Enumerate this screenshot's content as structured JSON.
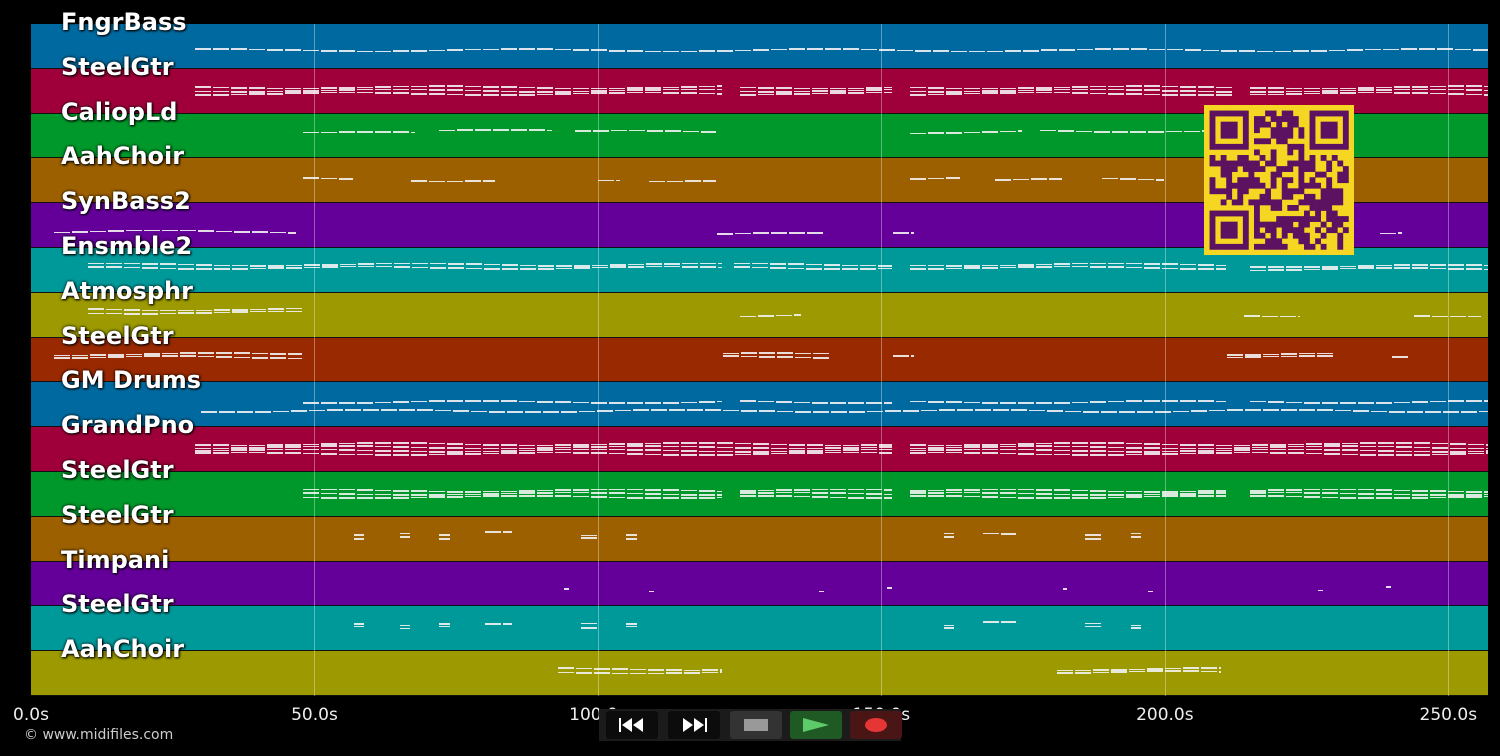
{
  "tracks": [
    {
      "name": "FngrBass",
      "color": "#006aa0",
      "notes": [
        [
          29,
          258,
          1,
          0.6
        ]
      ]
    },
    {
      "name": "SteelGtr",
      "color": "#a0003a",
      "notes": [
        [
          29,
          122,
          3,
          0.5
        ],
        [
          125,
          152,
          3,
          0.5
        ],
        [
          155,
          212,
          3,
          0.5
        ],
        [
          215,
          258,
          3,
          0.5
        ]
      ]
    },
    {
      "name": "CaliopLd",
      "color": "#00982a",
      "notes": [
        [
          48,
          68,
          1,
          0.45
        ],
        [
          72,
          92,
          1,
          0.4
        ],
        [
          96,
          121,
          1,
          0.42
        ],
        [
          155,
          175,
          1,
          0.43
        ],
        [
          178,
          208,
          1,
          0.4
        ],
        [
          215,
          233,
          1,
          0.45
        ]
      ]
    },
    {
      "name": "AahChoir",
      "color": "#9d6000",
      "notes": [
        [
          48,
          57,
          1,
          0.48
        ],
        [
          67,
          82,
          1,
          0.5
        ],
        [
          100,
          104,
          1,
          0.48
        ],
        [
          109,
          121,
          1,
          0.5
        ],
        [
          155,
          164,
          1,
          0.48
        ],
        [
          170,
          182,
          1,
          0.5
        ],
        [
          189,
          200,
          1,
          0.48
        ]
      ]
    },
    {
      "name": "SynBass2",
      "color": "#640099",
      "notes": [
        [
          4,
          47,
          1,
          0.65
        ],
        [
          121,
          140,
          1,
          0.7
        ],
        [
          152,
          156,
          1,
          0.7
        ],
        [
          238,
          242,
          1,
          0.7
        ]
      ]
    },
    {
      "name": "Ensmble2",
      "color": "#00999a",
      "notes": [
        [
          10,
          122,
          2,
          0.42
        ],
        [
          124,
          152,
          2,
          0.42
        ],
        [
          155,
          211,
          2,
          0.42
        ],
        [
          215,
          258,
          2,
          0.45
        ]
      ]
    },
    {
      "name": "Atmosphr",
      "color": "#9c9a00",
      "notes": [
        [
          10,
          48,
          2,
          0.42
        ],
        [
          125,
          136,
          1,
          0.52
        ],
        [
          214,
          224,
          1,
          0.52
        ],
        [
          244,
          256,
          1,
          0.52
        ]
      ]
    },
    {
      "name": "SteelGtr",
      "color": "#992900",
      "notes": [
        [
          4,
          48,
          2,
          0.42
        ],
        [
          122,
          141,
          2,
          0.42
        ],
        [
          152,
          156,
          1,
          0.45
        ],
        [
          211,
          230,
          2,
          0.42
        ],
        [
          240,
          243,
          1,
          0.45
        ]
      ]
    },
    {
      "name": "GM Drums",
      "color": "#006aa0",
      "notes": [
        [
          48,
          122,
          1,
          0.45
        ],
        [
          125,
          152,
          1,
          0.45
        ],
        [
          155,
          211,
          1,
          0.45
        ],
        [
          215,
          258,
          1,
          0.45
        ],
        [
          30,
          258,
          1,
          0.65
        ]
      ]
    },
    {
      "name": "GrandPno",
      "color": "#a0003a",
      "notes": [
        [
          29,
          152,
          4,
          0.5
        ],
        [
          155,
          258,
          4,
          0.5
        ]
      ]
    },
    {
      "name": "SteelGtr",
      "color": "#00982a",
      "notes": [
        [
          48,
          122,
          3,
          0.5
        ],
        [
          125,
          152,
          3,
          0.5
        ],
        [
          155,
          211,
          3,
          0.5
        ],
        [
          215,
          258,
          3,
          0.5
        ]
      ]
    },
    {
      "name": "SteelGtr",
      "color": "#9d6000",
      "notes": [
        [
          57,
          59,
          2,
          0.45
        ],
        [
          65,
          67,
          2,
          0.45
        ],
        [
          72,
          74,
          2,
          0.45
        ],
        [
          80,
          85,
          1,
          0.38
        ],
        [
          97,
          100,
          2,
          0.45
        ],
        [
          105,
          107,
          2,
          0.45
        ],
        [
          161,
          163,
          2,
          0.45
        ],
        [
          168,
          174,
          1,
          0.38
        ],
        [
          186,
          189,
          2,
          0.45
        ],
        [
          194,
          196,
          2,
          0.45
        ]
      ]
    },
    {
      "name": "Timpani",
      "color": "#640099",
      "notes": [
        [
          94,
          95,
          1,
          0.65
        ],
        [
          109,
          110,
          1,
          0.7
        ],
        [
          139,
          140,
          1,
          0.7
        ],
        [
          151,
          152,
          1,
          0.62
        ],
        [
          182,
          183,
          1,
          0.62
        ],
        [
          197,
          198,
          1,
          0.68
        ],
        [
          227,
          228,
          1,
          0.65
        ],
        [
          239,
          240,
          1,
          0.58
        ]
      ]
    },
    {
      "name": "SteelGtr",
      "color": "#00999a",
      "notes": [
        [
          57,
          59,
          2,
          0.45
        ],
        [
          65,
          67,
          2,
          0.45
        ],
        [
          72,
          74,
          2,
          0.45
        ],
        [
          80,
          85,
          1,
          0.38
        ],
        [
          97,
          100,
          2,
          0.45
        ],
        [
          105,
          107,
          2,
          0.45
        ],
        [
          161,
          163,
          2,
          0.45
        ],
        [
          168,
          174,
          1,
          0.38
        ],
        [
          186,
          189,
          2,
          0.45
        ],
        [
          194,
          196,
          2,
          0.45
        ]
      ]
    },
    {
      "name": "AahChoir",
      "color": "#9c9a00",
      "notes": [
        [
          93,
          122,
          2,
          0.45
        ],
        [
          181,
          210,
          2,
          0.45
        ]
      ]
    }
  ],
  "time_axis": {
    "min": 0,
    "max": 257,
    "ticks": [
      {
        "value": 0,
        "label": "0.0s"
      },
      {
        "value": 50,
        "label": "50.0s"
      },
      {
        "value": 100,
        "label": "100.0s"
      },
      {
        "value": 150,
        "label": "150.0s"
      },
      {
        "value": 200,
        "label": "200.0s"
      },
      {
        "value": 250,
        "label": "250.0s"
      }
    ]
  },
  "copyright": "© www.midifiles.com",
  "qr": {
    "fg": "#5c1260",
    "bg": "#f5d623"
  },
  "transport": {
    "rewind_icon": "rewind-icon",
    "fast_forward_icon": "fast-forward-icon",
    "stop_icon": "stop-icon",
    "play_icon": "play-icon",
    "record_icon": "record-icon"
  }
}
